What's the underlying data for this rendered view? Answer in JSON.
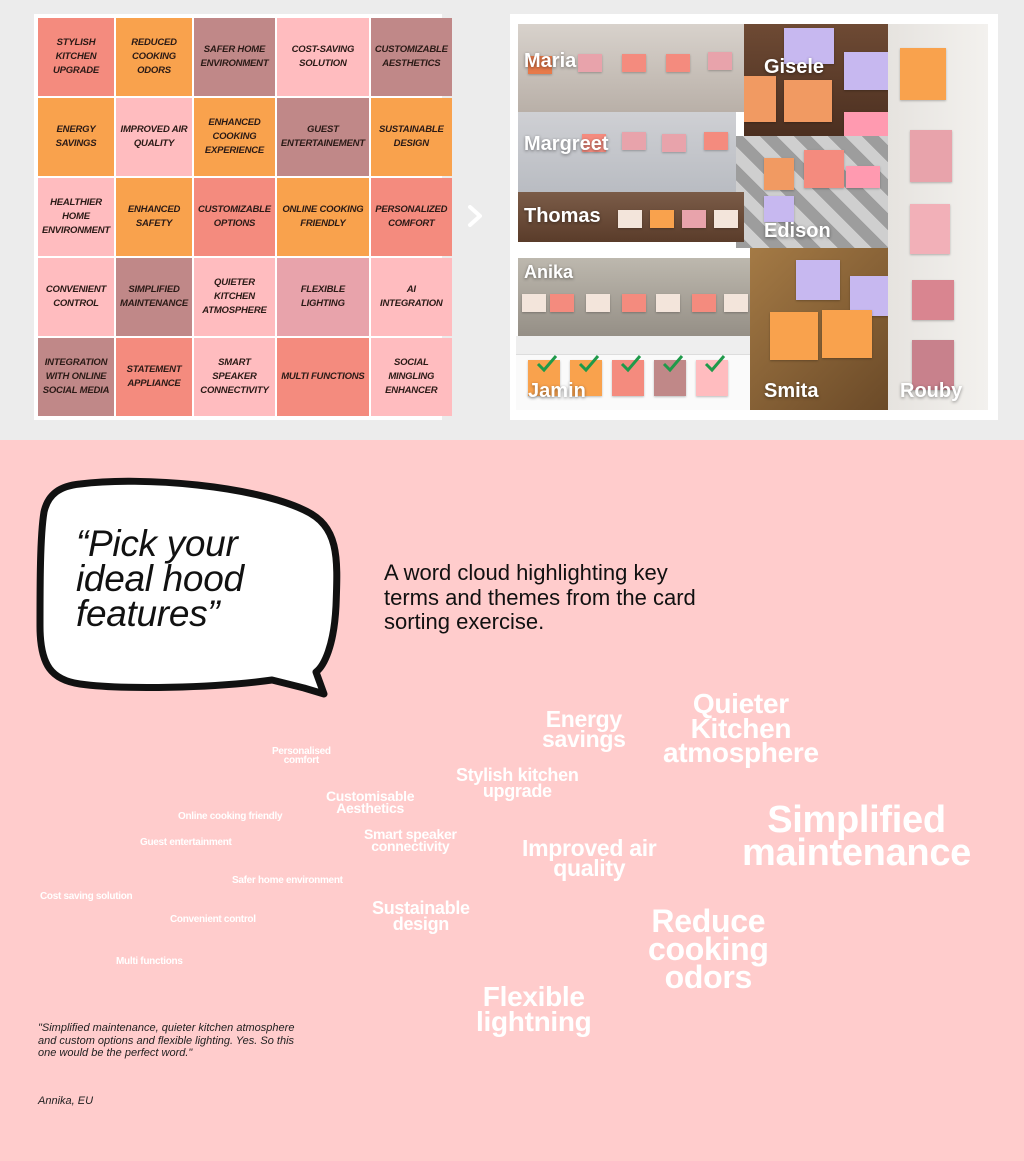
{
  "card_grid": {
    "cards": [
      {
        "text": "Stylish kitchen upgrade",
        "color": "#f48b7e"
      },
      {
        "text": "Reduced cooking odors",
        "color": "#f9a24d"
      },
      {
        "text": "Safer home environment",
        "color": "#c08888"
      },
      {
        "text": "Cost-saving solution",
        "color": "#ffbcbf"
      },
      {
        "text": "Customizable aesthetics",
        "color": "#c08888"
      },
      {
        "text": "Energy savings",
        "color": "#f9a24d"
      },
      {
        "text": "Improved air quality",
        "color": "#ffbcbf"
      },
      {
        "text": "Enhanced cooking experience",
        "color": "#f9a24d"
      },
      {
        "text": "Guest entertainement",
        "color": "#c08888"
      },
      {
        "text": "Sustainable design",
        "color": "#f9a24d"
      },
      {
        "text": "Healthier home environment",
        "color": "#ffbcbf"
      },
      {
        "text": "Enhanced safety",
        "color": "#f9a24d"
      },
      {
        "text": "Customizable options",
        "color": "#f48b7e"
      },
      {
        "text": "Online cooking friendly",
        "color": "#f9a24d"
      },
      {
        "text": "Personalized comfort",
        "color": "#f48b7e"
      },
      {
        "text": "Convenient control",
        "color": "#ffbcbf"
      },
      {
        "text": "Simplified maintenance",
        "color": "#c08888"
      },
      {
        "text": "Quieter kitchen atmosphere",
        "color": "#ffbcbf"
      },
      {
        "text": "Flexible lighting",
        "color": "#e8a3ab"
      },
      {
        "text": "AI integration",
        "color": "#ffbcbf"
      },
      {
        "text": "Integration with online social media",
        "color": "#c08888"
      },
      {
        "text": "Statement appliance",
        "color": "#f48b7e"
      },
      {
        "text": "Smart speaker connectivity",
        "color": "#ffbcbf"
      },
      {
        "text": "Multi functions",
        "color": "#f48b7e"
      },
      {
        "text": "Social mingling enhancer",
        "color": "#ffbcbf"
      }
    ]
  },
  "participants": {
    "maria": "Maria",
    "gisele": "Gisele",
    "margreet": "Margreet",
    "thomas": "Thomas",
    "edison": "Edison",
    "anika": "Anika",
    "jamin": "Jamin",
    "smita": "Smita",
    "rouby": "Rouby"
  },
  "bubble": {
    "text": "“Pick your ideal hood features”"
  },
  "description": "A word cloud highlighting key terms and themes from the card sorting exercise.",
  "word_cloud": {
    "personalised": "Personalised\ncomfort",
    "online_cooking": "Online cooking friendly",
    "guest": "Guest entertainment",
    "cost_saving": "Cost saving solution",
    "safer": "Safer home environment",
    "convenient": "Convenient control",
    "multi": "Multi functions",
    "customisable": "Customisable\nAesthetics",
    "smart_speaker": "Smart speaker\nconnectivity",
    "sustainable": "Sustainable\ndesign",
    "stylish": "Stylish kitchen\nupgrade",
    "energy": "Energy\nsavings",
    "quieter": "Quieter\nKitchen\natmosphere",
    "improved_air": "Improved air\nquality",
    "simplified": "Simplified\nmaintenance",
    "reduce": "Reduce\ncooking\nodors",
    "flexible": "Flexible\nlightning"
  },
  "quote": {
    "text": "\"Simplified maintenance, quieter kitchen atmosphere and custom options and flexible lighting. Yes. So this one would be the perfect word.\"",
    "author": "Annika, EU"
  },
  "colors": {
    "background": "#ffcccc",
    "top_band": "#ececec",
    "word": "#ffffff"
  }
}
